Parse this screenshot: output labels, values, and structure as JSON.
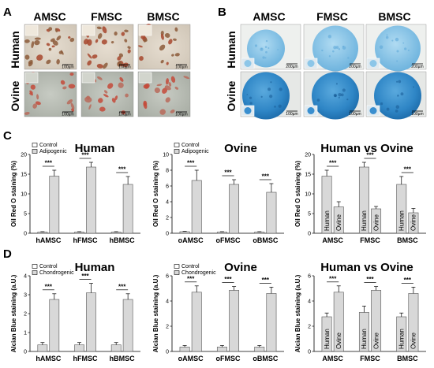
{
  "panels": {
    "A": {
      "label": "A",
      "columns": [
        "AMSC",
        "FMSC",
        "BMSC"
      ],
      "rows": [
        "Human",
        "Ovine"
      ],
      "scale_bar": "100µm"
    },
    "B": {
      "label": "B",
      "columns": [
        "AMSC",
        "FMSC",
        "BMSC"
      ],
      "rows": [
        "Human",
        "Ovine"
      ],
      "scale_bars": [
        "200µm",
        "200µm",
        "200µm",
        "100µm",
        "100µm",
        "100µm"
      ]
    }
  },
  "colors": {
    "oil_red_bg": "#d9d1c4",
    "oil_red_stain": "#b8452f",
    "ovine_bg": "#b9bdb4",
    "alcian_blue": "#3a8fcf",
    "alcian_light": "#8cc6e8",
    "bar_fill": "#d8d8d8"
  },
  "chart_data": [
    {
      "panel": "C",
      "type": "bar",
      "title": "Human",
      "ylabel": "Oil Red O staining (%)",
      "ylim": [
        0,
        20
      ],
      "yticks": [
        0,
        5,
        10,
        15,
        20
      ],
      "categories": [
        "hAMSC",
        "hFMSC",
        "hBMSC"
      ],
      "legend": [
        "Control",
        "Adipogenic"
      ],
      "series": [
        {
          "name": "Control",
          "values": [
            0.3,
            0.3,
            0.3
          ],
          "errors": [
            0.1,
            0.1,
            0.1
          ]
        },
        {
          "name": "Adipogenic",
          "values": [
            14.5,
            16.8,
            12.4
          ],
          "errors": [
            1.5,
            1.2,
            2.0
          ]
        }
      ],
      "significance": [
        "***",
        "***",
        "***"
      ]
    },
    {
      "panel": "C",
      "type": "bar",
      "title": "Ovine",
      "ylabel": "Oil Red O staining (%)",
      "ylim": [
        0,
        10
      ],
      "yticks": [
        0,
        2,
        4,
        6,
        8,
        10
      ],
      "categories": [
        "oAMSC",
        "oFMSC",
        "oBMSC"
      ],
      "legend": [
        "Control",
        "Adipogenic"
      ],
      "series": [
        {
          "name": "Control",
          "values": [
            0.2,
            0.15,
            0.15
          ],
          "errors": [
            0.05,
            0.05,
            0.05
          ]
        },
        {
          "name": "Adipogenic",
          "values": [
            6.7,
            6.2,
            5.2
          ],
          "errors": [
            1.3,
            0.6,
            1.1
          ]
        }
      ],
      "significance": [
        "***",
        "***",
        "***"
      ]
    },
    {
      "panel": "C",
      "type": "bar",
      "title": "Human vs Ovine",
      "ylabel": "Oil Red O staining (%)",
      "ylim": [
        0,
        20
      ],
      "yticks": [
        0,
        5,
        10,
        15,
        20
      ],
      "categories": [
        "AMSC",
        "FMSC",
        "BMSC"
      ],
      "bar_labels": [
        "Human",
        "Ovine"
      ],
      "series": [
        {
          "name": "Human",
          "values": [
            14.5,
            16.8,
            12.4
          ],
          "errors": [
            1.5,
            1.2,
            2.0
          ]
        },
        {
          "name": "Ovine",
          "values": [
            6.7,
            6.2,
            5.2
          ],
          "errors": [
            1.3,
            0.6,
            1.1
          ]
        }
      ],
      "significance": [
        "***",
        "***",
        "***"
      ]
    },
    {
      "panel": "D",
      "type": "bar",
      "title": "Human",
      "ylabel": "Alcian Blue staining (a.U.)",
      "ylim": [
        0,
        4
      ],
      "yticks": [
        0,
        1,
        2,
        3,
        4
      ],
      "categories": [
        "hAMSC",
        "hFMSC",
        "hBMSC"
      ],
      "legend": [
        "Control",
        "Chondrogenic"
      ],
      "series": [
        {
          "name": "Control",
          "values": [
            0.35,
            0.35,
            0.35
          ],
          "errors": [
            0.12,
            0.12,
            0.12
          ]
        },
        {
          "name": "Chondrogenic",
          "values": [
            2.75,
            3.1,
            2.75
          ],
          "errors": [
            0.3,
            0.5,
            0.3
          ]
        }
      ],
      "significance": [
        "***",
        "***",
        "***"
      ]
    },
    {
      "panel": "D",
      "type": "bar",
      "title": "Ovine",
      "ylabel": "Alcian Blue staining (a.U.)",
      "ylim": [
        0,
        6
      ],
      "yticks": [
        0,
        2,
        4,
        6
      ],
      "categories": [
        "oAMSC",
        "oFMSC",
        "oBMSC"
      ],
      "legend": [
        "Control",
        "Chondrogenic"
      ],
      "series": [
        {
          "name": "Control",
          "values": [
            0.35,
            0.35,
            0.35
          ],
          "errors": [
            0.12,
            0.12,
            0.12
          ]
        },
        {
          "name": "Chondrogenic",
          "values": [
            4.7,
            4.85,
            4.6
          ],
          "errors": [
            0.5,
            0.3,
            0.5
          ]
        }
      ],
      "significance": [
        "***",
        "***",
        "***"
      ]
    },
    {
      "panel": "D",
      "type": "bar",
      "title": "Human vs Ovine",
      "ylabel": "Alcian Blue staining (a.U.)",
      "ylim": [
        0,
        6
      ],
      "yticks": [
        0,
        2,
        4,
        6
      ],
      "categories": [
        "AMSC",
        "FMSC",
        "BMSC"
      ],
      "bar_labels": [
        "Human",
        "Ovine"
      ],
      "series": [
        {
          "name": "Human",
          "values": [
            2.75,
            3.1,
            2.75
          ],
          "errors": [
            0.3,
            0.5,
            0.3
          ]
        },
        {
          "name": "Ovine",
          "values": [
            4.7,
            4.85,
            4.6
          ],
          "errors": [
            0.5,
            0.3,
            0.5
          ]
        }
      ],
      "significance": [
        "***",
        "***",
        "***"
      ]
    }
  ]
}
